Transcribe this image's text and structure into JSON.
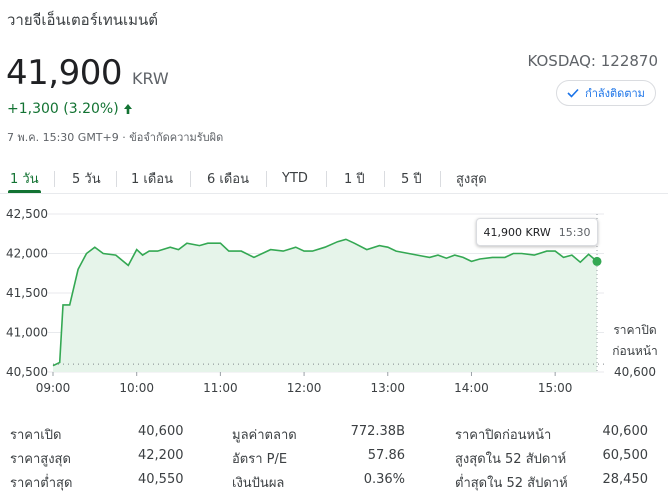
{
  "header": {
    "company_name": "วายจีเอ็นเตอร์เทนเมนต์",
    "price": "41,900",
    "currency": "KRW",
    "exchange_ticker": "KOSDAQ: 122870",
    "change": "+1,300 (3.20%)",
    "change_color": "#137333",
    "timestamp": "7 พ.ค. 15:30 GMT+9 · ข้อจำกัดความรับผิด",
    "follow_label": "กำลังติดตาม",
    "follow_icon": "check-icon",
    "up_icon": "arrow-up-icon"
  },
  "tabs": [
    "1 วัน",
    "5 วัน",
    "1 เดือน",
    "6 เดือน",
    "YTD",
    "1 ปี",
    "5 ปี",
    "สูงสุด"
  ],
  "active_tab": "1 วัน",
  "accent_color": "#137333",
  "chart_data": {
    "type": "area",
    "y_ticks": [
      "42,500",
      "42,000",
      "41,500",
      "41,000",
      "40,500"
    ],
    "ylim": [
      40500,
      42500
    ],
    "x_ticks": [
      "09:00",
      "10:00",
      "11:00",
      "12:00",
      "13:00",
      "14:00",
      "15:00"
    ],
    "x_range_hours": [
      9.0,
      15.5
    ],
    "series": [
      {
        "x": [
          9.0,
          9.08,
          9.12,
          9.2,
          9.3,
          9.4,
          9.5,
          9.6,
          9.75,
          9.9,
          10.0,
          10.07,
          10.15,
          10.25,
          10.4,
          10.5,
          10.6,
          10.75,
          10.85,
          11.0,
          11.1,
          11.25,
          11.4,
          11.6,
          11.75,
          11.9,
          12.0,
          12.1,
          12.25,
          12.4,
          12.5,
          12.6,
          12.75,
          12.9,
          13.0,
          13.1,
          13.25,
          13.4,
          13.5,
          13.6,
          13.7,
          13.8,
          13.9,
          14.0,
          14.1,
          14.25,
          14.4,
          14.5,
          14.6,
          14.75,
          14.9,
          15.0,
          15.1,
          15.2,
          15.3,
          15.4,
          15.5
        ],
        "y": [
          40580,
          40620,
          41350,
          41350,
          41800,
          42000,
          42080,
          42000,
          41980,
          41850,
          42050,
          41980,
          42030,
          42030,
          42080,
          42050,
          42130,
          42100,
          42130,
          42130,
          42030,
          42030,
          41950,
          42050,
          42030,
          42080,
          42030,
          42030,
          42080,
          42150,
          42180,
          42130,
          42050,
          42100,
          42080,
          42030,
          42000,
          41970,
          41950,
          41980,
          41940,
          41980,
          41950,
          41900,
          41930,
          41950,
          41950,
          42000,
          42000,
          41980,
          42030,
          42030,
          41950,
          41980,
          41890,
          41990,
          41900
        ]
      }
    ],
    "last_point_label": "41,900 KRW",
    "last_point_time": "15:30",
    "previous_close_label_line1": "ราคาปิด",
    "previous_close_label_line2": "ก่อนหน้า",
    "previous_close_value": "40,600",
    "previous_close": 40600,
    "line_color": "#34a853",
    "fill_color": "#e6f4ea",
    "grid": true
  },
  "stats": {
    "col1": [
      {
        "label": "ราคาเปิด",
        "value": "40,600"
      },
      {
        "label": "ราคาสูงสุด",
        "value": "42,200"
      },
      {
        "label": "ราคาต่ำสุด",
        "value": "40,550"
      }
    ],
    "col2": [
      {
        "label": "มูลค่าตลาด",
        "value": "772.38B"
      },
      {
        "label": "อัตรา P/E",
        "value": "57.86"
      },
      {
        "label": "เงินปันผล",
        "value": "0.36%"
      }
    ],
    "col3": [
      {
        "label": "ราคาปิดก่อนหน้า",
        "value": "40,600"
      },
      {
        "label": "สูงสุดใน 52 สัปดาห์",
        "value": "60,500"
      },
      {
        "label": "ต่ำสุดใน 52 สัปดาห์",
        "value": "28,450"
      }
    ]
  }
}
